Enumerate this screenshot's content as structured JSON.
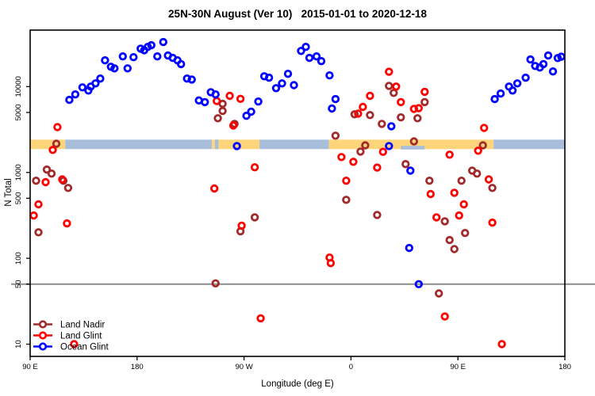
{
  "title": "25N-30N August (Ver 10)   2015-01-01 to 2020-12-18",
  "legend": {
    "items": [
      {
        "label": "Land Nadir"
      },
      {
        "label": "Land Glint"
      },
      {
        "label": "Ocean Glint"
      }
    ]
  },
  "chart_data": {
    "type": "scatter",
    "title": "25N-30N August (Ver 10)   2015-01-01 to 2020-12-18",
    "xlabel": "Longitude (deg E)",
    "ylabel": "N Total",
    "axes": {
      "xlim": [
        90,
        540
      ],
      "ylim": [
        7.2,
        45500
      ],
      "y_log": true,
      "x_wraps_longitude": "axis runs 90E eastward around the globe to 180 (second pass)",
      "grid": false
    },
    "x_ticks": [
      {
        "value": 90,
        "label": "90 E"
      },
      {
        "value": 180,
        "label": "180"
      },
      {
        "value": 270,
        "label": "90 W"
      },
      {
        "value": 360,
        "label": "0"
      },
      {
        "value": 450,
        "label": "90 E"
      },
      {
        "value": 540,
        "label": "180"
      }
    ],
    "y_ticks": [
      {
        "value": 10,
        "label": "10"
      },
      {
        "value": 50,
        "label": "50"
      },
      {
        "value": 100,
        "label": "100"
      },
      {
        "value": 500,
        "label": "500"
      },
      {
        "value": 1000,
        "label": "1000"
      },
      {
        "value": 5000,
        "label": "5000"
      },
      {
        "value": 10000,
        "label": "10000"
      }
    ],
    "reference_line": {
      "value": 50,
      "color": "#8c8c8c"
    },
    "surface_band": {
      "value_range": [
        1870,
        2410
      ],
      "colors": {
        "land": "#FFD57C",
        "ocean": "#A9BEDB"
      },
      "segments": [
        {
          "from": 90,
          "to": 119.5,
          "type": "land"
        },
        {
          "from": 119.5,
          "to": 243,
          "type": "ocean"
        },
        {
          "from": 243,
          "to": 283,
          "type": "land"
        },
        {
          "from": 283,
          "to": 341.5,
          "type": "ocean"
        },
        {
          "from": 341.5,
          "to": 480,
          "type": "land"
        },
        {
          "from": 480,
          "to": 540,
          "type": "ocean"
        }
      ],
      "fragments": [
        {
          "from": 245.5,
          "to": 248.5,
          "type": "ocean",
          "value_range": [
            1870,
            2410
          ]
        },
        {
          "from": 402,
          "to": 422,
          "type": "ocean",
          "value_range": [
            1850,
            2040
          ]
        }
      ]
    },
    "marker": {
      "shape": "open-circle",
      "radius_px": 3.8,
      "stroke_px": 2.8
    },
    "series": [
      {
        "name": "Land Nadir",
        "color": "#A12A2A",
        "points": [
          [
            112,
            2160
          ],
          [
            104,
            1080
          ],
          [
            108,
            970
          ],
          [
            95,
            800
          ],
          [
            118,
            800
          ],
          [
            122,
            660
          ],
          [
            97,
            201
          ],
          [
            252,
            6300
          ],
          [
            252,
            5200
          ],
          [
            248,
            4280
          ],
          [
            262,
            3680
          ],
          [
            267,
            206
          ],
          [
            279,
            300
          ],
          [
            246,
            51
          ],
          [
            347,
            2680
          ],
          [
            368,
            1750
          ],
          [
            372,
            2070
          ],
          [
            356,
            480
          ],
          [
            382,
            320
          ],
          [
            363,
            4760
          ],
          [
            376,
            4660
          ],
          [
            386,
            3680
          ],
          [
            392,
            10200
          ],
          [
            396,
            8450
          ],
          [
            402,
            4380
          ],
          [
            406,
            1250
          ],
          [
            416,
            4280
          ],
          [
            422,
            6600
          ],
          [
            413,
            2300
          ],
          [
            426,
            800
          ],
          [
            453,
            800
          ],
          [
            462,
            1050
          ],
          [
            466,
            970
          ],
          [
            479,
            660
          ],
          [
            439,
            270
          ],
          [
            456,
            197
          ],
          [
            443,
            163
          ],
          [
            447,
            128
          ],
          [
            434,
            39
          ],
          [
            471,
            2070
          ]
        ]
      },
      {
        "name": "Land Glint",
        "color": "#FF0000",
        "points": [
          [
            113,
            3370
          ],
          [
            109,
            1830
          ],
          [
            103,
            770
          ],
          [
            117,
            830
          ],
          [
            97,
            425
          ],
          [
            93,
            315
          ],
          [
            121,
            255
          ],
          [
            127,
            10
          ],
          [
            247,
            6800
          ],
          [
            258,
            7800
          ],
          [
            267,
            7200
          ],
          [
            261,
            3520
          ],
          [
            279,
            1150
          ],
          [
            245,
            650
          ],
          [
            268,
            240
          ],
          [
            284,
            20
          ],
          [
            352,
            1510
          ],
          [
            362,
            1330
          ],
          [
            356,
            800
          ],
          [
            382,
            1140
          ],
          [
            387,
            1740
          ],
          [
            370,
            5800
          ],
          [
            366,
            4850
          ],
          [
            376,
            7800
          ],
          [
            342,
            102
          ],
          [
            343,
            88
          ],
          [
            392,
            14900
          ],
          [
            398,
            10000
          ],
          [
            402,
            6600
          ],
          [
            413,
            5500
          ],
          [
            417,
            5600
          ],
          [
            422,
            8700
          ],
          [
            443,
            1610
          ],
          [
            467,
            1790
          ],
          [
            472,
            3300
          ],
          [
            476,
            830
          ],
          [
            427,
            560
          ],
          [
            447,
            580
          ],
          [
            455,
            425
          ],
          [
            432,
            300
          ],
          [
            451,
            315
          ],
          [
            479,
            260
          ],
          [
            439,
            21
          ],
          [
            487,
            10
          ]
        ]
      },
      {
        "name": "Ocean Glint",
        "color": "#0000FF",
        "points": [
          [
            123,
            7000
          ],
          [
            128,
            8100
          ],
          [
            134,
            9800
          ],
          [
            139,
            9000
          ],
          [
            141,
            10000
          ],
          [
            145,
            10900
          ],
          [
            149,
            12400
          ],
          [
            153,
            20200
          ],
          [
            158,
            17000
          ],
          [
            161,
            16300
          ],
          [
            168,
            22500
          ],
          [
            172,
            16300
          ],
          [
            177,
            22000
          ],
          [
            183,
            27700
          ],
          [
            186,
            26500
          ],
          [
            189,
            29000
          ],
          [
            192,
            30300
          ],
          [
            197,
            22500
          ],
          [
            202,
            33000
          ],
          [
            206,
            23000
          ],
          [
            210,
            21600
          ],
          [
            214,
            20200
          ],
          [
            217,
            18300
          ],
          [
            222,
            12400
          ],
          [
            226,
            12100
          ],
          [
            232,
            6900
          ],
          [
            237,
            6600
          ],
          [
            242,
            8600
          ],
          [
            246,
            8100
          ],
          [
            272,
            4570
          ],
          [
            276,
            5100
          ],
          [
            282,
            6700
          ],
          [
            287,
            13200
          ],
          [
            291,
            12700
          ],
          [
            297,
            9600
          ],
          [
            302,
            10900
          ],
          [
            307,
            14100
          ],
          [
            312,
            10400
          ],
          [
            318,
            26000
          ],
          [
            322,
            29000
          ],
          [
            325,
            21600
          ],
          [
            331,
            22500
          ],
          [
            335,
            19800
          ],
          [
            342,
            13500
          ],
          [
            344,
            5550
          ],
          [
            347,
            7150
          ],
          [
            264,
            2030
          ],
          [
            392,
            2030
          ],
          [
            394,
            3450
          ],
          [
            410,
            1050
          ],
          [
            409,
            132
          ],
          [
            417,
            50
          ],
          [
            481,
            7150
          ],
          [
            486,
            8300
          ],
          [
            493,
            10000
          ],
          [
            496,
            9000
          ],
          [
            500,
            10900
          ],
          [
            507,
            12700
          ],
          [
            511,
            20700
          ],
          [
            515,
            17400
          ],
          [
            519,
            16700
          ],
          [
            522,
            18300
          ],
          [
            526,
            23000
          ],
          [
            530,
            15000
          ],
          [
            534,
            21500
          ],
          [
            537,
            22300
          ]
        ]
      }
    ]
  }
}
